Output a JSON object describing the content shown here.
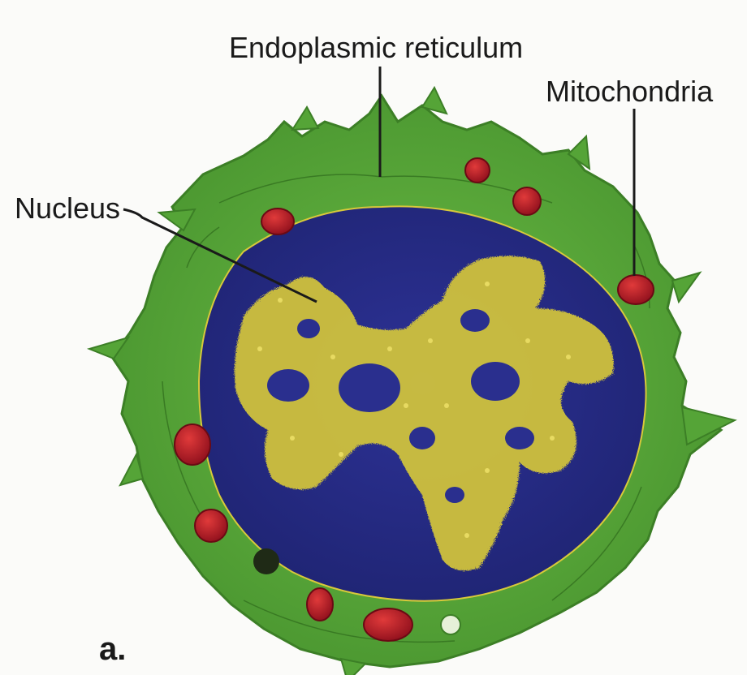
{
  "diagram": {
    "labels": {
      "endoplasmic_reticulum": "Endoplasmic reticulum",
      "mitochondria": "Mitochondria",
      "nucleus": "Nucleus",
      "figure_panel": "a."
    },
    "colors": {
      "cytoplasm": "#5aa83a",
      "cytoplasm_dark": "#3f8a28",
      "nucleus": "#262b86",
      "chromatin": "#d6c93a",
      "mitochondria": "#c0192a",
      "leader_line": "#1a1a1a"
    }
  }
}
